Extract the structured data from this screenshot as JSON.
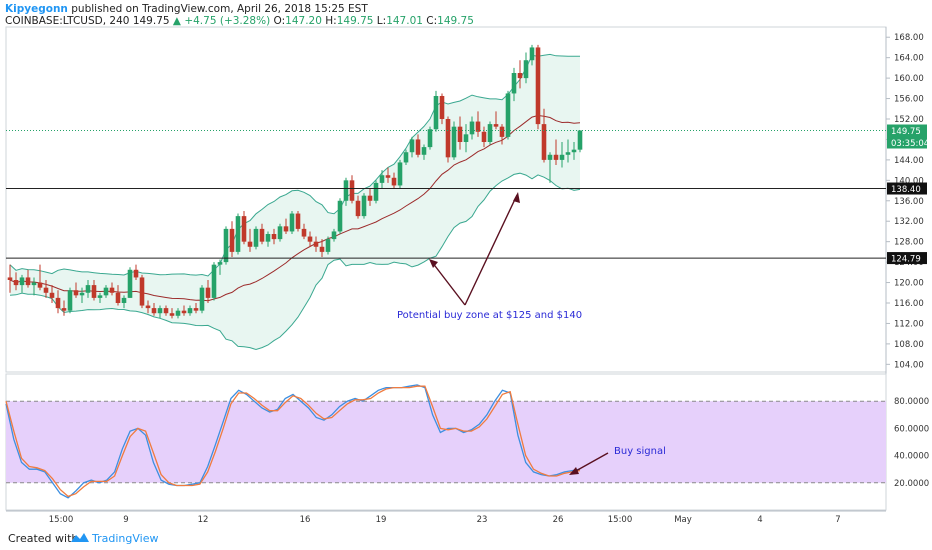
{
  "header": {
    "author": "Kipyegonn",
    "published": "published on TradingView.com, April 26, 2018 15:25 EST",
    "symbol": "COINBASE:LTCUSD, 240",
    "last": "149.75",
    "change": "+4.75 (+3.28%)",
    "o_label": "O:",
    "o_value": "147.20",
    "h_label": "H:",
    "h_value": "149.75",
    "l_label": "L:",
    "l_value": "147.01",
    "c_label": "C:",
    "c_value": "149.75"
  },
  "footer": {
    "created_with": "Created with",
    "brand": "TradingView"
  },
  "colors": {
    "up": "#26a269",
    "down": "#c0392b",
    "band": "#3aa890",
    "band_fill": "#e8f6f1",
    "basis": "#9c2b2b",
    "stoch_k": "#3d8fe0",
    "stoch_d": "#f07b3f",
    "stoch_zone": "#e6d0fb",
    "annot_text": "#2a2ad6",
    "arrow": "#5a1020"
  },
  "chart_data": [
    {
      "type": "candlestick",
      "y_ticks": [
        "168.00",
        "164.00",
        "160.00",
        "156.00",
        "152.00",
        "148.00",
        "144.00",
        "140.00",
        "136.00",
        "132.00",
        "128.00",
        "124.00",
        "120.00",
        "116.00",
        "112.00",
        "108.00",
        "104.00"
      ],
      "ylim": [
        102.5,
        170
      ],
      "x_ticks": [
        "15:00",
        "9",
        "12",
        "16",
        "19",
        "23",
        "26",
        "15:00",
        "May",
        "4",
        "7"
      ],
      "price_labels": [
        "149.75",
        "03:35:04",
        "138.40",
        "124.79"
      ],
      "last_price": 149.75,
      "levels": [
        138.4,
        124.79
      ],
      "annotation": "Potential buy zone at $125 and $140",
      "candles": [
        [
          121.0,
          123.5,
          118.0,
          120.5
        ],
        [
          120.5,
          122.0,
          118.5,
          119.5
        ],
        [
          119.5,
          121.5,
          118.0,
          121.0
        ],
        [
          121.0,
          122.5,
          119.0,
          119.5
        ],
        [
          119.5,
          121.0,
          117.5,
          120.0
        ],
        [
          120.0,
          123.5,
          118.5,
          119.0
        ],
        [
          119.0,
          120.5,
          117.0,
          118.0
        ],
        [
          118.0,
          119.5,
          116.0,
          117.0
        ],
        [
          117.0,
          118.5,
          114.0,
          115.0
        ],
        [
          115.0,
          116.5,
          113.5,
          114.5
        ],
        [
          114.5,
          119.0,
          114.0,
          118.5
        ],
        [
          118.5,
          120.0,
          117.0,
          117.5
        ],
        [
          117.5,
          119.0,
          116.0,
          118.0
        ],
        [
          118.0,
          120.5,
          117.0,
          119.5
        ],
        [
          119.5,
          120.5,
          116.5,
          117.0
        ],
        [
          117.0,
          118.0,
          116.0,
          117.5
        ],
        [
          117.5,
          119.5,
          117.0,
          119.0
        ],
        [
          119.0,
          120.0,
          117.5,
          118.0
        ],
        [
          118.0,
          119.5,
          115.5,
          116.0
        ],
        [
          116.0,
          117.5,
          115.0,
          117.0
        ],
        [
          117.0,
          123.0,
          117.0,
          122.5
        ],
        [
          122.5,
          123.5,
          120.5,
          121.0
        ],
        [
          121.0,
          121.5,
          115.0,
          115.5
        ],
        [
          115.5,
          116.5,
          114.0,
          115.0
        ],
        [
          115.0,
          116.0,
          113.5,
          114.0
        ],
        [
          114.0,
          115.5,
          113.0,
          115.0
        ],
        [
          115.0,
          115.5,
          113.5,
          114.0
        ],
        [
          114.0,
          115.0,
          113.0,
          113.5
        ],
        [
          113.5,
          115.0,
          113.0,
          114.5
        ],
        [
          114.5,
          115.5,
          113.5,
          114.0
        ],
        [
          114.0,
          115.5,
          113.5,
          115.0
        ],
        [
          115.0,
          116.0,
          114.0,
          114.5
        ],
        [
          114.5,
          119.5,
          114.0,
          119.0
        ],
        [
          119.0,
          120.5,
          116.0,
          117.0
        ],
        [
          117.0,
          124.0,
          116.5,
          123.5
        ],
        [
          123.5,
          124.5,
          121.5,
          124.0
        ],
        [
          124.0,
          131.0,
          123.5,
          130.5
        ],
        [
          130.5,
          132.0,
          125.0,
          126.0
        ],
        [
          126.0,
          133.5,
          125.5,
          133.0
        ],
        [
          133.0,
          134.0,
          127.5,
          128.0
        ],
        [
          128.0,
          130.5,
          126.0,
          127.0
        ],
        [
          127.0,
          131.0,
          126.5,
          130.5
        ],
        [
          130.5,
          131.5,
          127.5,
          128.0
        ],
        [
          128.0,
          130.0,
          127.0,
          129.5
        ],
        [
          129.5,
          130.5,
          127.5,
          128.5
        ],
        [
          128.5,
          131.5,
          128.0,
          131.0
        ],
        [
          131.0,
          132.5,
          129.5,
          130.0
        ],
        [
          130.0,
          134.0,
          129.5,
          133.5
        ],
        [
          133.5,
          134.0,
          130.0,
          130.5
        ],
        [
          130.5,
          131.5,
          128.5,
          129.0
        ],
        [
          129.0,
          130.0,
          127.0,
          128.0
        ],
        [
          128.0,
          129.0,
          126.0,
          127.0
        ],
        [
          127.0,
          128.5,
          125.0,
          126.0
        ],
        [
          126.0,
          129.0,
          125.5,
          128.5
        ],
        [
          128.5,
          130.5,
          128.0,
          130.0
        ],
        [
          130.0,
          136.5,
          129.5,
          136.0
        ],
        [
          136.0,
          140.5,
          135.0,
          140.0
        ],
        [
          140.0,
          141.0,
          135.5,
          136.0
        ],
        [
          136.0,
          137.0,
          132.5,
          133.0
        ],
        [
          133.0,
          137.5,
          132.5,
          137.0
        ],
        [
          137.0,
          138.5,
          135.0,
          136.0
        ],
        [
          136.0,
          140.0,
          135.5,
          139.5
        ],
        [
          139.5,
          142.0,
          138.5,
          141.0
        ],
        [
          141.0,
          142.5,
          139.5,
          140.5
        ],
        [
          140.5,
          141.5,
          138.5,
          139.0
        ],
        [
          139.0,
          144.0,
          138.5,
          143.5
        ],
        [
          143.5,
          146.0,
          143.0,
          145.5
        ],
        [
          145.5,
          148.5,
          144.5,
          148.0
        ],
        [
          148.0,
          149.0,
          144.5,
          145.0
        ],
        [
          145.0,
          147.0,
          144.0,
          146.5
        ],
        [
          146.5,
          150.5,
          146.0,
          150.0
        ],
        [
          150.0,
          157.5,
          149.5,
          156.5
        ],
        [
          156.5,
          157.0,
          151.0,
          152.0
        ],
        [
          152.0,
          152.5,
          143.5,
          144.5
        ],
        [
          144.5,
          151.5,
          144.0,
          150.5
        ],
        [
          150.5,
          152.5,
          146.0,
          147.5
        ],
        [
          147.5,
          151.0,
          145.5,
          149.0
        ],
        [
          149.0,
          152.5,
          148.0,
          151.5
        ],
        [
          151.5,
          153.5,
          148.5,
          149.5
        ],
        [
          149.5,
          150.5,
          146.5,
          147.5
        ],
        [
          147.5,
          151.5,
          147.0,
          151.0
        ],
        [
          151.0,
          153.5,
          150.0,
          150.5
        ],
        [
          150.5,
          151.0,
          147.0,
          148.5
        ],
        [
          148.5,
          157.5,
          148.0,
          157.0
        ],
        [
          157.0,
          162.0,
          155.5,
          161.0
        ],
        [
          161.0,
          163.5,
          158.0,
          160.0
        ],
        [
          160.0,
          165.0,
          159.0,
          163.5
        ],
        [
          163.5,
          166.5,
          162.5,
          166.0
        ],
        [
          166.0,
          166.5,
          150.0,
          151.0
        ],
        [
          151.0,
          154.0,
          143.5,
          144.0
        ],
        [
          144.0,
          145.5,
          139.5,
          145.0
        ],
        [
          145.0,
          148.0,
          143.0,
          144.0
        ],
        [
          144.0,
          147.5,
          142.5,
          145.0
        ],
        [
          145.0,
          148.0,
          143.5,
          145.5
        ],
        [
          145.5,
          147.5,
          144.0,
          146.0
        ],
        [
          146.0,
          149.8,
          145.5,
          149.75
        ]
      ]
    },
    {
      "type": "line",
      "y_ticks": [
        "80.0000",
        "60.0000",
        "40.0000",
        "20.0000"
      ],
      "ylim": [
        0,
        100
      ],
      "levels": [
        80,
        20
      ],
      "annotation": "Buy signal",
      "series": [
        {
          "values": [
            78,
            52,
            35,
            30,
            30,
            28,
            20,
            12,
            9,
            14,
            20,
            22,
            20,
            22,
            28,
            45,
            58,
            60,
            55,
            35,
            22,
            19,
            18,
            18,
            19,
            20,
            32,
            48,
            65,
            82,
            88,
            85,
            80,
            75,
            72,
            74,
            82,
            85,
            80,
            75,
            68,
            66,
            70,
            76,
            80,
            82,
            80,
            84,
            88,
            90,
            90,
            90,
            91,
            92,
            90,
            70,
            57,
            60,
            60,
            57,
            59,
            63,
            70,
            80,
            88,
            86,
            55,
            35,
            28,
            26,
            25,
            26,
            28,
            29,
            30
          ]
        },
        {
          "values": [
            80,
            58,
            38,
            32,
            31,
            29,
            23,
            15,
            10,
            12,
            17,
            21,
            21,
            21,
            25,
            40,
            54,
            60,
            58,
            42,
            26,
            20,
            18,
            18,
            18,
            19,
            28,
            43,
            60,
            78,
            86,
            86,
            82,
            77,
            73,
            73,
            79,
            84,
            82,
            77,
            71,
            67,
            68,
            73,
            78,
            81,
            81,
            82,
            86,
            89,
            90,
            90,
            90,
            91,
            91,
            76,
            60,
            59,
            60,
            58,
            58,
            61,
            67,
            76,
            85,
            87,
            63,
            40,
            30,
            27,
            25,
            25,
            27,
            28,
            29
          ]
        }
      ]
    }
  ]
}
